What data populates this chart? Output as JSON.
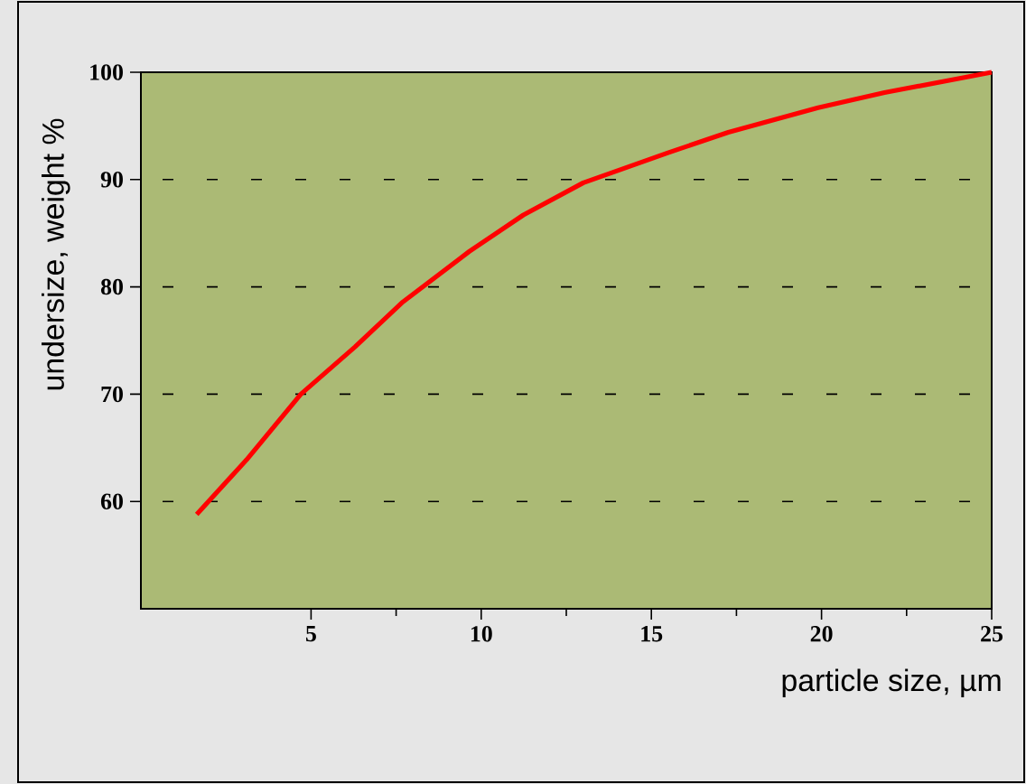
{
  "chart_data": {
    "type": "line",
    "xlabel": "particle size, µm",
    "ylabel": "undersize, weight %",
    "x": [
      1.64,
      3.11,
      4.7,
      6.29,
      7.7,
      9.65,
      11.24,
      13.0,
      15.49,
      17.26,
      19.9,
      21.85,
      25
    ],
    "series": [
      {
        "color": "#ff0000",
        "values": [
          58.8,
          63.9,
          70.0,
          74.4,
          78.6,
          83.3,
          86.7,
          89.7,
          92.5,
          94.4,
          96.7,
          98.1,
          100
        ]
      }
    ],
    "xlim": [
      0,
      25
    ],
    "ylim": [
      50,
      100
    ],
    "xticks": [
      5,
      10,
      15,
      20,
      25
    ],
    "yticks": [
      60,
      70,
      80,
      90,
      100
    ],
    "grid": "y",
    "line_style": "solid"
  }
}
